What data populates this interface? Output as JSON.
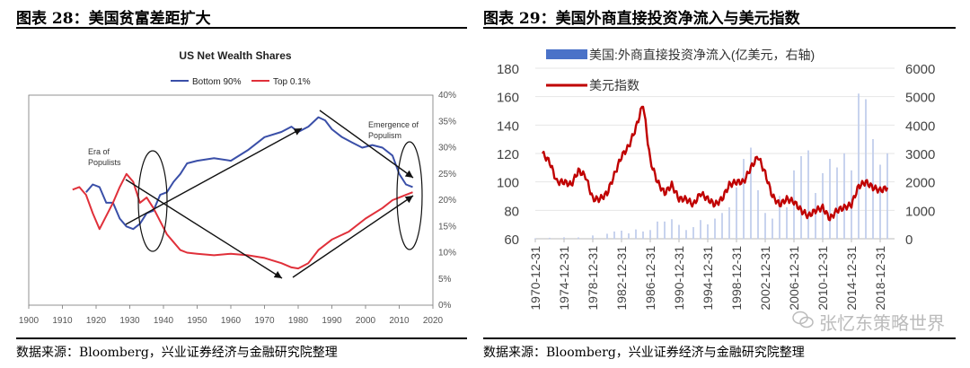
{
  "left": {
    "title": "图表 28：美国贫富差距扩大",
    "source": "数据来源：Bloomberg，兴业证券经济与金融研究院整理",
    "chart_data": {
      "type": "line",
      "title": "US Net Wealth Shares",
      "series": [
        {
          "name": "Bottom 90%",
          "color": "#3a4fa8",
          "x": [
            1917,
            1919,
            1921,
            1923,
            1925,
            1927,
            1929,
            1931,
            1933,
            1935,
            1937,
            1939,
            1941,
            1943,
            1945,
            1947,
            1950,
            1955,
            1960,
            1965,
            1970,
            1975,
            1978,
            1980,
            1983,
            1986,
            1988,
            1990,
            1993,
            1996,
            1999,
            2002,
            2005,
            2008,
            2010,
            2012,
            2014
          ],
          "values": [
            21.5,
            23.0,
            22.5,
            19.5,
            19.5,
            16.5,
            15.0,
            14.5,
            15.5,
            17.5,
            18.0,
            21.0,
            21.5,
            23.5,
            25.0,
            27.0,
            27.5,
            28.0,
            27.5,
            29.5,
            32.0,
            33.0,
            34.0,
            33.0,
            34.0,
            35.8,
            35.2,
            33.5,
            32.0,
            31.0,
            30.0,
            30.5,
            30.0,
            28.5,
            25.0,
            23.0,
            22.5
          ]
        },
        {
          "name": "Top 0.1%",
          "color": "#e0303a",
          "x": [
            1913,
            1915,
            1917,
            1919,
            1921,
            1923,
            1925,
            1927,
            1929,
            1931,
            1933,
            1935,
            1937,
            1939,
            1941,
            1943,
            1945,
            1947,
            1950,
            1955,
            1960,
            1965,
            1970,
            1975,
            1978,
            1980,
            1983,
            1986,
            1990,
            1995,
            2000,
            2005,
            2008,
            2010,
            2012,
            2014
          ],
          "values": [
            22.0,
            22.5,
            21.0,
            17.5,
            14.5,
            17.0,
            19.5,
            22.5,
            25.0,
            23.5,
            19.5,
            20.5,
            18.5,
            16.0,
            13.5,
            12.0,
            10.5,
            10.0,
            9.8,
            9.5,
            9.8,
            9.5,
            9.0,
            8.0,
            7.2,
            7.0,
            8.0,
            10.5,
            12.5,
            14.0,
            16.5,
            18.5,
            20.0,
            20.5,
            21.0,
            21.5
          ]
        }
      ],
      "xlim": [
        1900,
        2020
      ],
      "xticks": [
        1900,
        1910,
        1920,
        1930,
        1940,
        1950,
        1960,
        1970,
        1980,
        1990,
        2000,
        2010,
        2020
      ],
      "ylim": [
        0,
        40
      ],
      "yticks_right": [
        "0%",
        "5%",
        "10%",
        "15%",
        "20%",
        "25%",
        "30%",
        "35%",
        "40%"
      ],
      "annotations": [
        "Era of Populists",
        "Emergence of Populism"
      ]
    }
  },
  "right": {
    "title": "图表 29：美国外商直接投资净流入与美元指数",
    "source": "数据来源：Bloomberg，兴业证券经济与金融研究院整理",
    "watermark": "张忆东策略世界",
    "chart_data": {
      "type": "line",
      "series": [
        {
          "name": "美国:外商直接投资净流入(亿美元，右轴)",
          "type": "bar",
          "color": "#4a72c8",
          "x": [
            1970,
            1972,
            1974,
            1976,
            1978,
            1980,
            1981,
            1982,
            1983,
            1984,
            1985,
            1986,
            1987,
            1988,
            1989,
            1990,
            1991,
            1992,
            1993,
            1994,
            1995,
            1996,
            1997,
            1998,
            1999,
            2000,
            2001,
            2002,
            2003,
            2004,
            2005,
            2006,
            2007,
            2008,
            2009,
            2010,
            2011,
            2012,
            2013,
            2014,
            2015,
            2016,
            2017,
            2018,
            2019
          ],
          "values": [
            10,
            30,
            45,
            40,
            110,
            170,
            250,
            280,
            180,
            320,
            250,
            300,
            600,
            600,
            680,
            480,
            300,
            400,
            650,
            500,
            700,
            900,
            1100,
            1800,
            2800,
            3200,
            1700,
            900,
            700,
            1500,
            1100,
            2400,
            2900,
            3100,
            1600,
            2300,
            2800,
            2500,
            3000,
            2400,
            5100,
            4900,
            3500,
            2600,
            3000
          ]
        },
        {
          "name": "美元指数",
          "type": "line",
          "color": "#c00000",
          "x": [
            1971,
            1972,
            1973,
            1974,
            1975,
            1976,
            1977,
            1978,
            1979,
            1980,
            1981,
            1982,
            1983,
            1984,
            1985,
            1986,
            1987,
            1988,
            1989,
            1990,
            1991,
            1992,
            1993,
            1994,
            1995,
            1996,
            1997,
            1998,
            1999,
            2000,
            2001,
            2002,
            2003,
            2004,
            2005,
            2006,
            2007,
            2008,
            2009,
            2010,
            2011,
            2012,
            2013,
            2014,
            2015,
            2016,
            2017,
            2018,
            2019
          ],
          "values": [
            120,
            114,
            100,
            100,
            98,
            108,
            104,
            88,
            88,
            92,
            105,
            118,
            125,
            138,
            155,
            115,
            100,
            92,
            98,
            88,
            88,
            84,
            92,
            88,
            84,
            88,
            98,
            100,
            100,
            110,
            118,
            106,
            90,
            84,
            88,
            86,
            80,
            76,
            80,
            82,
            74,
            80,
            82,
            84,
            97,
            100,
            96,
            94,
            96
          ]
        }
      ],
      "categories": [
        "1970-12-31",
        "1974-12-31",
        "1978-12-31",
        "1982-12-31",
        "1986-12-31",
        "1990-12-31",
        "1994-12-31",
        "1998-12-31",
        "2002-12-31",
        "2006-12-31",
        "2010-12-31",
        "2014-12-31",
        "2018-12-31"
      ],
      "xlim": [
        1970,
        2020
      ],
      "ylim": [
        60,
        180
      ],
      "yticks": [
        "60",
        "80",
        "100",
        "120",
        "140",
        "160",
        "180"
      ],
      "ylim_right": [
        0,
        6000
      ],
      "yticks_right": [
        "0",
        "1000",
        "2000",
        "3000",
        "4000",
        "5000",
        "6000"
      ],
      "legend": "top"
    }
  }
}
